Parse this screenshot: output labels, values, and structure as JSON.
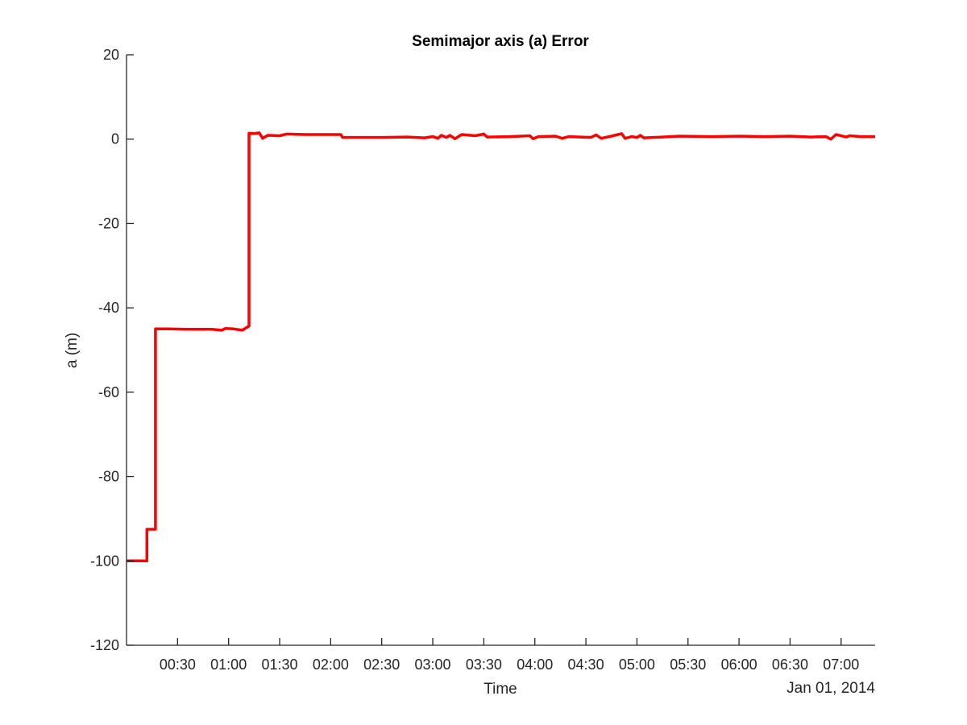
{
  "chart_data": {
    "type": "line",
    "title": "Semimajor axis (a) Error",
    "xlabel": "Time",
    "ylabel": "a (m)",
    "date_label": "Jan 01, 2014",
    "xlim": [
      "00:00",
      "07:20"
    ],
    "ylim": [
      -120,
      20
    ],
    "grid": false,
    "legend": "none",
    "x_tick_labels": [
      "00:30",
      "01:00",
      "01:30",
      "02:00",
      "02:30",
      "03:00",
      "03:30",
      "04:00",
      "04:30",
      "05:00",
      "05:30",
      "06:00",
      "06:30",
      "07:00"
    ],
    "y_ticks": [
      -120,
      -100,
      -80,
      -60,
      -40,
      -20,
      0,
      20
    ],
    "series": [
      {
        "color": "#ff0000",
        "points": [
          [
            "00:00",
            -100
          ],
          [
            "00:12",
            -100
          ],
          [
            "00:12",
            -92.5
          ],
          [
            "00:17",
            -92.5
          ],
          [
            "00:17",
            -45
          ],
          [
            "00:25",
            -45
          ],
          [
            "00:35",
            -45.1
          ],
          [
            "00:50",
            -45.1
          ],
          [
            "00:56",
            -45.3
          ],
          [
            "00:58",
            -44.9
          ],
          [
            "01:03",
            -45
          ],
          [
            "01:08",
            -45.3
          ],
          [
            "01:12",
            -44.3
          ],
          [
            "01:12",
            1.4
          ],
          [
            "01:15",
            1.3
          ],
          [
            "01:18",
            1.5
          ],
          [
            "01:20",
            0.2
          ],
          [
            "01:23",
            0.9
          ],
          [
            "01:30",
            0.8
          ],
          [
            "01:34",
            1.2
          ],
          [
            "01:45",
            1.1
          ],
          [
            "02:00",
            1.1
          ],
          [
            "02:06",
            1.1
          ],
          [
            "02:07",
            0.4
          ],
          [
            "02:30",
            0.4
          ],
          [
            "02:45",
            0.5
          ],
          [
            "02:55",
            0.3
          ],
          [
            "03:00",
            0.6
          ],
          [
            "03:03",
            0.2
          ],
          [
            "03:05",
            0.9
          ],
          [
            "03:08",
            0.4
          ],
          [
            "03:10",
            0.9
          ],
          [
            "03:13",
            0.1
          ],
          [
            "03:17",
            1.1
          ],
          [
            "03:25",
            0.8
          ],
          [
            "03:30",
            1.2
          ],
          [
            "03:32",
            0.5
          ],
          [
            "03:45",
            0.6
          ],
          [
            "03:57",
            0.8
          ],
          [
            "03:59",
            0.1
          ],
          [
            "04:02",
            0.6
          ],
          [
            "04:12",
            0.7
          ],
          [
            "04:16",
            0.2
          ],
          [
            "04:20",
            0.6
          ],
          [
            "04:33",
            0.4
          ],
          [
            "04:36",
            1.0
          ],
          [
            "04:39",
            0.2
          ],
          [
            "04:45",
            0.7
          ],
          [
            "04:51",
            1.3
          ],
          [
            "04:53",
            0.2
          ],
          [
            "04:57",
            0.6
          ],
          [
            "05:00",
            0.4
          ],
          [
            "05:02",
            0.9
          ],
          [
            "05:04",
            0.3
          ],
          [
            "05:15",
            0.5
          ],
          [
            "05:25",
            0.7
          ],
          [
            "05:45",
            0.6
          ],
          [
            "06:00",
            0.7
          ],
          [
            "06:15",
            0.6
          ],
          [
            "06:30",
            0.7
          ],
          [
            "06:42",
            0.5
          ],
          [
            "06:51",
            0.6
          ],
          [
            "06:54",
            0.0
          ],
          [
            "06:57",
            1.1
          ],
          [
            "07:03",
            0.5
          ],
          [
            "07:05",
            0.8
          ],
          [
            "07:12",
            0.6
          ],
          [
            "07:20",
            0.6
          ]
        ]
      }
    ]
  }
}
